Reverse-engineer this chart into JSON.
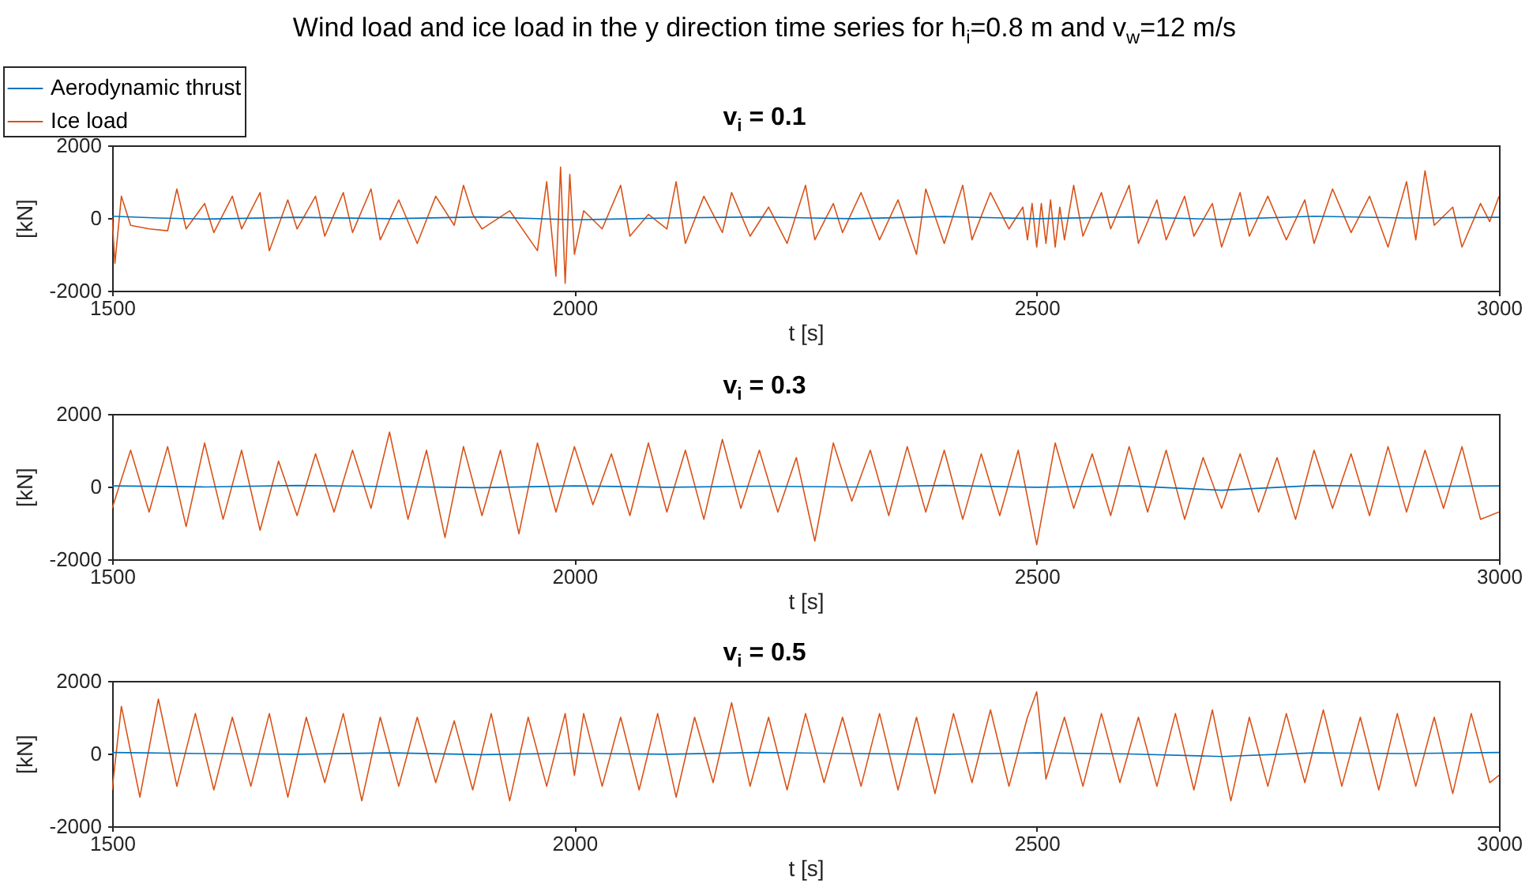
{
  "chart_data": [
    {
      "type": "line",
      "title": "Wind load and ice load in the y direction time series for h$_{i}$=0.8 m and v$_{w}$=12 m/s",
      "subtitle": "v$_{i}$ = 0.1",
      "xlabel": "t [s]",
      "ylabel": "[kN]",
      "xlim": [
        1500,
        3000
      ],
      "xticks": [
        1500,
        2000,
        2500,
        3000
      ],
      "ylim": [
        -2000,
        2000
      ],
      "yticks": [
        -2000,
        0,
        2000
      ],
      "grid": false,
      "legend": "top left",
      "series": [
        {
          "name": "Aerodynamic thrust",
          "color": "#0072bd",
          "x": [
            1500,
            1550,
            1600,
            1700,
            1800,
            1900,
            2000,
            2100,
            2200,
            2300,
            2400,
            2500,
            2600,
            2700,
            2800,
            2900,
            3000
          ],
          "values": [
            50,
            0,
            -30,
            20,
            -20,
            30,
            -50,
            0,
            30,
            -20,
            40,
            -20,
            30,
            -40,
            50,
            0,
            20
          ]
        },
        {
          "name": "Ice load",
          "color": "#d95319",
          "x": [
            1500,
            1503,
            1510,
            1520,
            1540,
            1560,
            1570,
            1580,
            1600,
            1610,
            1630,
            1640,
            1660,
            1670,
            1690,
            1700,
            1720,
            1730,
            1750,
            1760,
            1780,
            1790,
            1810,
            1830,
            1850,
            1870,
            1880,
            1890,
            1900,
            1930,
            1960,
            1970,
            1980,
            1985,
            1990,
            1995,
            2000,
            2010,
            2030,
            2050,
            2060,
            2080,
            2100,
            2110,
            2120,
            2140,
            2160,
            2170,
            2190,
            2210,
            2230,
            2250,
            2260,
            2280,
            2290,
            2310,
            2330,
            2350,
            2370,
            2380,
            2400,
            2420,
            2430,
            2450,
            2470,
            2485,
            2490,
            2495,
            2500,
            2505,
            2510,
            2515,
            2520,
            2525,
            2530,
            2540,
            2550,
            2570,
            2580,
            2600,
            2610,
            2630,
            2640,
            2660,
            2670,
            2690,
            2700,
            2720,
            2730,
            2750,
            2770,
            2790,
            2800,
            2820,
            2840,
            2860,
            2880,
            2900,
            2910,
            2920,
            2930,
            2950,
            2960,
            2980,
            2990,
            3000
          ],
          "values": [
            0,
            -1250,
            600,
            -200,
            -300,
            -350,
            800,
            -300,
            400,
            -400,
            600,
            -300,
            700,
            -900,
            500,
            -300,
            600,
            -500,
            700,
            -400,
            800,
            -600,
            500,
            -700,
            600,
            -200,
            900,
            100,
            -300,
            200,
            -900,
            1000,
            -1600,
            1400,
            -1800,
            1200,
            -1000,
            200,
            -300,
            900,
            -500,
            100,
            -300,
            1000,
            -700,
            600,
            -400,
            700,
            -500,
            300,
            -700,
            900,
            -600,
            400,
            -400,
            700,
            -600,
            500,
            -1000,
            800,
            -700,
            900,
            -600,
            700,
            -300,
            300,
            -600,
            400,
            -800,
            400,
            -700,
            500,
            -800,
            300,
            -600,
            900,
            -500,
            700,
            -300,
            900,
            -700,
            500,
            -600,
            600,
            -500,
            400,
            -800,
            700,
            -500,
            600,
            -600,
            500,
            -700,
            800,
            -400,
            600,
            -800,
            1000,
            -600,
            1300,
            -200,
            300,
            -800,
            400,
            -100,
            600
          ]
        }
      ]
    },
    {
      "type": "line",
      "title": "v$_{i}$ = 0.3",
      "xlabel": "t [s]",
      "ylabel": "[kN]",
      "xlim": [
        1500,
        3000
      ],
      "xticks": [
        1500,
        2000,
        2500,
        3000
      ],
      "ylim": [
        -2000,
        2000
      ],
      "yticks": [
        -2000,
        0,
        2000
      ],
      "grid": false,
      "series": [
        {
          "color": "#0072bd",
          "x": [
            1500,
            1600,
            1700,
            1800,
            1900,
            2000,
            2100,
            2200,
            2300,
            2400,
            2500,
            2600,
            2700,
            2800,
            2900,
            3000
          ],
          "values": [
            20,
            -10,
            30,
            0,
            -30,
            20,
            -20,
            10,
            -10,
            30,
            -20,
            20,
            -100,
            30,
            0,
            20
          ]
        },
        {
          "color": "#d95319",
          "x": [
            1500,
            1520,
            1540,
            1560,
            1580,
            1600,
            1620,
            1640,
            1660,
            1680,
            1700,
            1720,
            1740,
            1760,
            1780,
            1800,
            1820,
            1840,
            1860,
            1880,
            1900,
            1920,
            1940,
            1960,
            1980,
            2000,
            2020,
            2040,
            2060,
            2080,
            2100,
            2120,
            2140,
            2160,
            2180,
            2200,
            2220,
            2240,
            2260,
            2280,
            2300,
            2320,
            2340,
            2360,
            2380,
            2400,
            2420,
            2440,
            2460,
            2480,
            2500,
            2520,
            2540,
            2560,
            2580,
            2600,
            2620,
            2640,
            2660,
            2680,
            2700,
            2720,
            2740,
            2760,
            2780,
            2800,
            2820,
            2840,
            2860,
            2880,
            2900,
            2920,
            2940,
            2960,
            2980,
            3000
          ],
          "values": [
            -600,
            1000,
            -700,
            1100,
            -1100,
            1200,
            -900,
            1000,
            -1200,
            700,
            -800,
            900,
            -700,
            1000,
            -600,
            1500,
            -900,
            1000,
            -1400,
            1100,
            -800,
            1000,
            -1300,
            1200,
            -700,
            1100,
            -500,
            900,
            -800,
            1200,
            -700,
            1000,
            -900,
            1300,
            -600,
            1000,
            -700,
            800,
            -1500,
            1200,
            -400,
            1000,
            -800,
            1100,
            -700,
            1000,
            -900,
            900,
            -800,
            1000,
            -1600,
            1200,
            -600,
            900,
            -800,
            1100,
            -700,
            1000,
            -900,
            800,
            -600,
            900,
            -700,
            800,
            -900,
            1000,
            -600,
            900,
            -800,
            1100,
            -700,
            1000,
            -600,
            1100,
            -900,
            -700
          ]
        }
      ]
    },
    {
      "type": "line",
      "title": "v$_{i}$ = 0.5",
      "xlabel": "t [s]",
      "ylabel": "[kN]",
      "xlim": [
        1500,
        3000
      ],
      "xticks": [
        1500,
        2000,
        2500,
        3000
      ],
      "ylim": [
        -2000,
        2000
      ],
      "yticks": [
        -2000,
        0,
        2000
      ],
      "grid": false,
      "series": [
        {
          "color": "#0072bd",
          "x": [
            1500,
            1600,
            1700,
            1800,
            1900,
            2000,
            2100,
            2200,
            2300,
            2400,
            2500,
            2600,
            2700,
            2800,
            2900,
            3000
          ],
          "values": [
            30,
            0,
            -20,
            20,
            -30,
            10,
            -20,
            30,
            0,
            -20,
            20,
            -10,
            -80,
            20,
            0,
            30
          ]
        },
        {
          "color": "#d95319",
          "x": [
            1500,
            1510,
            1530,
            1550,
            1570,
            1590,
            1610,
            1630,
            1650,
            1670,
            1690,
            1710,
            1730,
            1750,
            1770,
            1790,
            1810,
            1830,
            1850,
            1870,
            1890,
            1910,
            1930,
            1950,
            1970,
            1990,
            2000,
            2010,
            2030,
            2050,
            2070,
            2090,
            2110,
            2130,
            2150,
            2170,
            2190,
            2210,
            2230,
            2250,
            2270,
            2290,
            2310,
            2330,
            2350,
            2370,
            2390,
            2410,
            2430,
            2450,
            2470,
            2490,
            2500,
            2510,
            2530,
            2550,
            2570,
            2590,
            2610,
            2630,
            2650,
            2670,
            2690,
            2710,
            2730,
            2750,
            2770,
            2790,
            2810,
            2830,
            2850,
            2870,
            2890,
            2910,
            2930,
            2950,
            2970,
            2990,
            3000
          ],
          "values": [
            -1000,
            1300,
            -1200,
            1500,
            -900,
            1100,
            -1000,
            1000,
            -900,
            1100,
            -1200,
            1000,
            -800,
            1100,
            -1300,
            1000,
            -900,
            1000,
            -800,
            900,
            -1000,
            1100,
            -1300,
            1000,
            -900,
            1100,
            -600,
            1100,
            -900,
            1000,
            -1000,
            1100,
            -1200,
            1000,
            -800,
            1400,
            -900,
            1000,
            -1000,
            1100,
            -800,
            1000,
            -900,
            1100,
            -1000,
            1000,
            -1100,
            1100,
            -800,
            1200,
            -900,
            1000,
            1700,
            -700,
            1000,
            -900,
            1100,
            -800,
            1000,
            -900,
            1100,
            -1000,
            1200,
            -1300,
            1000,
            -900,
            1100,
            -800,
            1200,
            -900,
            1000,
            -1000,
            1100,
            -900,
            1000,
            -1100,
            1100,
            -800,
            -600
          ]
        }
      ]
    }
  ]
}
